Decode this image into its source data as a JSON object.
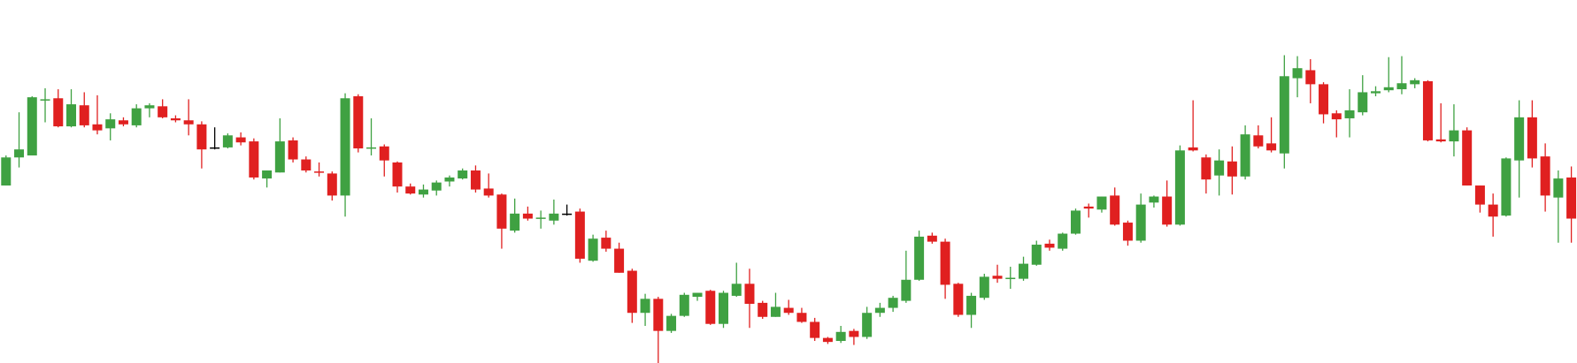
{
  "chart_data": {
    "type": "candlestick",
    "up_color": "#3fa142",
    "down_color": "#e02020",
    "neutral_color": "#000000",
    "ylim": [
      0,
      362
    ],
    "open": [
      177,
      205,
      207,
      262,
      264,
      236,
      257,
      238,
      234,
      242,
      237,
      254,
      256,
      244,
      242,
      238,
      215,
      215,
      225,
      221,
      184,
      190,
      222,
      203,
      191,
      189,
      167,
      266,
      214,
      216,
      200,
      176,
      168,
      172,
      181,
      184,
      192,
      174,
      168,
      132,
      149,
      144,
      142,
      149,
      151,
      102,
      125,
      114,
      92,
      50,
      64,
      32,
      47,
      66,
      72,
      39,
      67,
      79,
      60,
      46,
      55,
      50,
      41,
      25,
      22,
      32,
      26,
      50,
      55,
      62,
      83,
      127,
      121,
      79,
      48,
      65,
      87,
      84,
      84,
      98,
      119,
      114,
      129,
      156,
      153,
      167,
      140,
      122,
      160,
      166,
      138,
      215,
      205,
      187,
      201,
      186,
      227,
      219,
      209,
      284,
      292,
      278,
      249,
      244,
      250,
      269,
      272,
      273,
      278,
      281,
      223,
      221,
      232,
      177,
      158,
      147,
      202,
      245,
      206,
      165,
      185
    ],
    "high": [
      207,
      250,
      266,
      274,
      273,
      273,
      270,
      267,
      249,
      245,
      258,
      259,
      263,
      247,
      263,
      241,
      235,
      229,
      230,
      224,
      192,
      244,
      225,
      206,
      200,
      191,
      269,
      268,
      244,
      218,
      201,
      179,
      178,
      182,
      187,
      194,
      197,
      189,
      169,
      164,
      156,
      152,
      163,
      158,
      154,
      128,
      132,
      120,
      94,
      69,
      66,
      49,
      70,
      70,
      73,
      72,
      100,
      94,
      62,
      70,
      63,
      55,
      45,
      26,
      37,
      34,
      56,
      60,
      67,
      112,
      132,
      130,
      124,
      80,
      70,
      89,
      98,
      96,
      106,
      122,
      123,
      130,
      154,
      159,
      166,
      175,
      142,
      169,
      167,
      182,
      217,
      262,
      208,
      213,
      216,
      237,
      237,
      245,
      307,
      306,
      303,
      280,
      252,
      273,
      287,
      276,
      305,
      306,
      284,
      282,
      259,
      258,
      235,
      177,
      169,
      205,
      262,
      262,
      219,
      192,
      196
    ],
    "low": [
      177,
      195,
      207,
      240,
      235,
      235,
      235,
      228,
      222,
      236,
      235,
      245,
      244,
      240,
      227,
      194,
      213,
      214,
      217,
      183,
      175,
      190,
      200,
      190,
      186,
      162,
      146,
      210,
      207,
      186,
      170,
      168,
      165,
      167,
      176,
      183,
      170,
      165,
      114,
      130,
      142,
      134,
      138,
      147,
      100,
      101,
      111,
      90,
      40,
      37,
      0,
      30,
      46,
      62,
      38,
      35,
      66,
      35,
      44,
      46,
      48,
      40,
      22,
      19,
      20,
      18,
      24,
      46,
      51,
      60,
      82,
      119,
      64,
      46,
      35,
      63,
      80,
      74,
      82,
      97,
      112,
      112,
      128,
      145,
      150,
      137,
      117,
      120,
      155,
      136,
      137,
      211,
      169,
      167,
      168,
      183,
      214,
      210,
      194,
      265,
      259,
      239,
      225,
      225,
      247,
      266,
      270,
      268,
      274,
      221,
      220,
      206,
      177,
      150,
      126,
      146,
      165,
      195,
      151,
      120,
      120
    ],
    "close": [
      205,
      213,
      265,
      263,
      236,
      258,
      237,
      232,
      243,
      238,
      254,
      257,
      245,
      242,
      238,
      213,
      215,
      227,
      220,
      185,
      192,
      221,
      203,
      192,
      190,
      167,
      264,
      214,
      215,
      202,
      176,
      169,
      173,
      180,
      185,
      192,
      173,
      167,
      134,
      149,
      144,
      145,
      149,
      149,
      104,
      124,
      114,
      90,
      50,
      64,
      32,
      47,
      68,
      70,
      39,
      70,
      79,
      59,
      46,
      56,
      50,
      41,
      25,
      21,
      31,
      26,
      50,
      55,
      65,
      83,
      126,
      121,
      78,
      48,
      67,
      86,
      84,
      85,
      99,
      118,
      115,
      129,
      152,
      154,
      166,
      138,
      122,
      158,
      166,
      138,
      212,
      212,
      183,
      202,
      186,
      228,
      216,
      212,
      286,
      294,
      278,
      248,
      243,
      252,
      270,
      271,
      275,
      279,
      282,
      222,
      221,
      232,
      177,
      158,
      146,
      204,
      245,
      204,
      167,
      184,
      144
    ]
  }
}
